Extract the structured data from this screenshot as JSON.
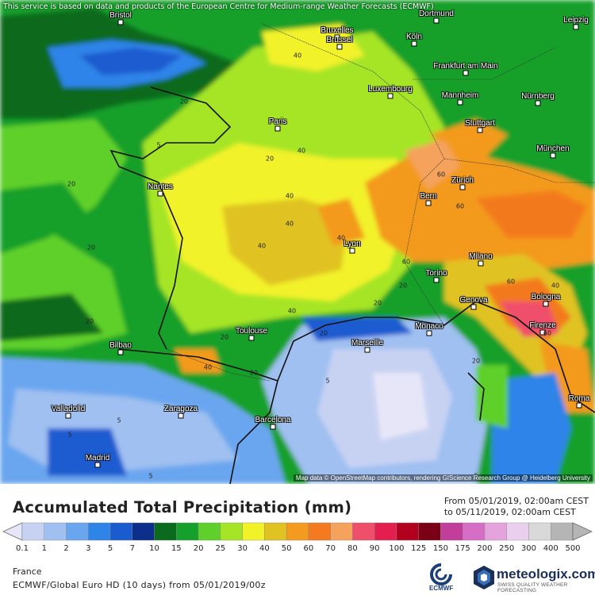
{
  "header": {
    "disclaimer": "This service is based on data and products of the European Centre for Medium-range Weather Forecasts (ECMWF)"
  },
  "map": {
    "credits": "Map data © OpenStreetMap contributors, rendering GIScience Research Group @ Heidelberg University",
    "cities": [
      {
        "name": "Bristol",
        "id": "bristol"
      },
      {
        "name": "Bruxelles",
        "id": "bruxelles"
      },
      {
        "name": "Brussel",
        "id": "brussel"
      },
      {
        "name": "Köln",
        "id": "koln"
      },
      {
        "name": "Dortmund",
        "id": "dortmund"
      },
      {
        "name": "Leipzig",
        "id": "leipzig"
      },
      {
        "name": "Frankfurt am Main",
        "id": "frankfurt"
      },
      {
        "name": "Luxembourg",
        "id": "luxembourg"
      },
      {
        "name": "Mannheim",
        "id": "mannheim"
      },
      {
        "name": "Nürnberg",
        "id": "nurnberg"
      },
      {
        "name": "Paris",
        "id": "paris"
      },
      {
        "name": "Stuttgart",
        "id": "stuttgart"
      },
      {
        "name": "München",
        "id": "munchen"
      },
      {
        "name": "Nantes",
        "id": "nantes"
      },
      {
        "name": "Zürich",
        "id": "zurich"
      },
      {
        "name": "Bern",
        "id": "bern"
      },
      {
        "name": "Lyon",
        "id": "lyon"
      },
      {
        "name": "Milano",
        "id": "milano"
      },
      {
        "name": "Torino",
        "id": "torino"
      },
      {
        "name": "Genova",
        "id": "genova"
      },
      {
        "name": "Bologna",
        "id": "bologna"
      },
      {
        "name": "Firenze",
        "id": "firenze"
      },
      {
        "name": "Monaco",
        "id": "monaco"
      },
      {
        "name": "Toulouse",
        "id": "toulouse"
      },
      {
        "name": "Marseille",
        "id": "marseille"
      },
      {
        "name": "Bilbao",
        "id": "bilbao"
      },
      {
        "name": "Valladolid",
        "id": "valladolid"
      },
      {
        "name": "Zaragoza",
        "id": "zaragoza"
      },
      {
        "name": "Barcelona",
        "id": "barcelona"
      },
      {
        "name": "Madrid",
        "id": "madrid"
      },
      {
        "name": "Roma",
        "id": "roma"
      }
    ],
    "contour_labels": [
      "40",
      "20",
      "5",
      "20",
      "40",
      "60",
      "40",
      "20",
      "60",
      "40",
      "60",
      "40",
      "20",
      "40",
      "20",
      "5",
      "5",
      "5",
      "20",
      "40",
      "60",
      "60",
      "20",
      "40",
      "5",
      "5",
      "20",
      "20",
      "20",
      "40",
      "20"
    ]
  },
  "legend": {
    "title": "Accumulated Total Precipitation (mm)",
    "from_line": "From 05/01/2019, 02:00am CEST",
    "to_line": "to 05/11/2019, 02:00am CEST",
    "ticks": [
      "0.1",
      "1",
      "2",
      "3",
      "5",
      "7",
      "10",
      "15",
      "20",
      "25",
      "30",
      "40",
      "50",
      "60",
      "70",
      "80",
      "90",
      "100",
      "125",
      "150",
      "175",
      "200",
      "250",
      "300",
      "400",
      "500"
    ],
    "colors": [
      "#e6e6f8",
      "#c7d2f3",
      "#9fc0f1",
      "#6aa6ef",
      "#2f84e8",
      "#1a5bd0",
      "#0c2f8c",
      "#0a6a1e",
      "#14a02a",
      "#5fd02a",
      "#a5e526",
      "#f2f229",
      "#e0c321",
      "#f39a1f",
      "#f37a1e",
      "#f5a35c",
      "#ef4f6a",
      "#e41f4f",
      "#b4001f",
      "#7a0016",
      "#c13e9a",
      "#d76ec6",
      "#e4a3dc",
      "#ead0ee",
      "#d9d9d9",
      "#b5b5b5"
    ]
  },
  "footer": {
    "region": "France",
    "model": "ECMWF/Global Euro HD (10 days) from 05/01/2019/00z",
    "ecmwf_logo_text": "ECMWF",
    "brand_name": "meteologix.com",
    "brand_tagline": "SWISS QUALITY WEATHER FORECASTING",
    "brand_icon": "meteologix-logo-icon",
    "ecmwf_icon": "ecmwf-logo-icon"
  }
}
